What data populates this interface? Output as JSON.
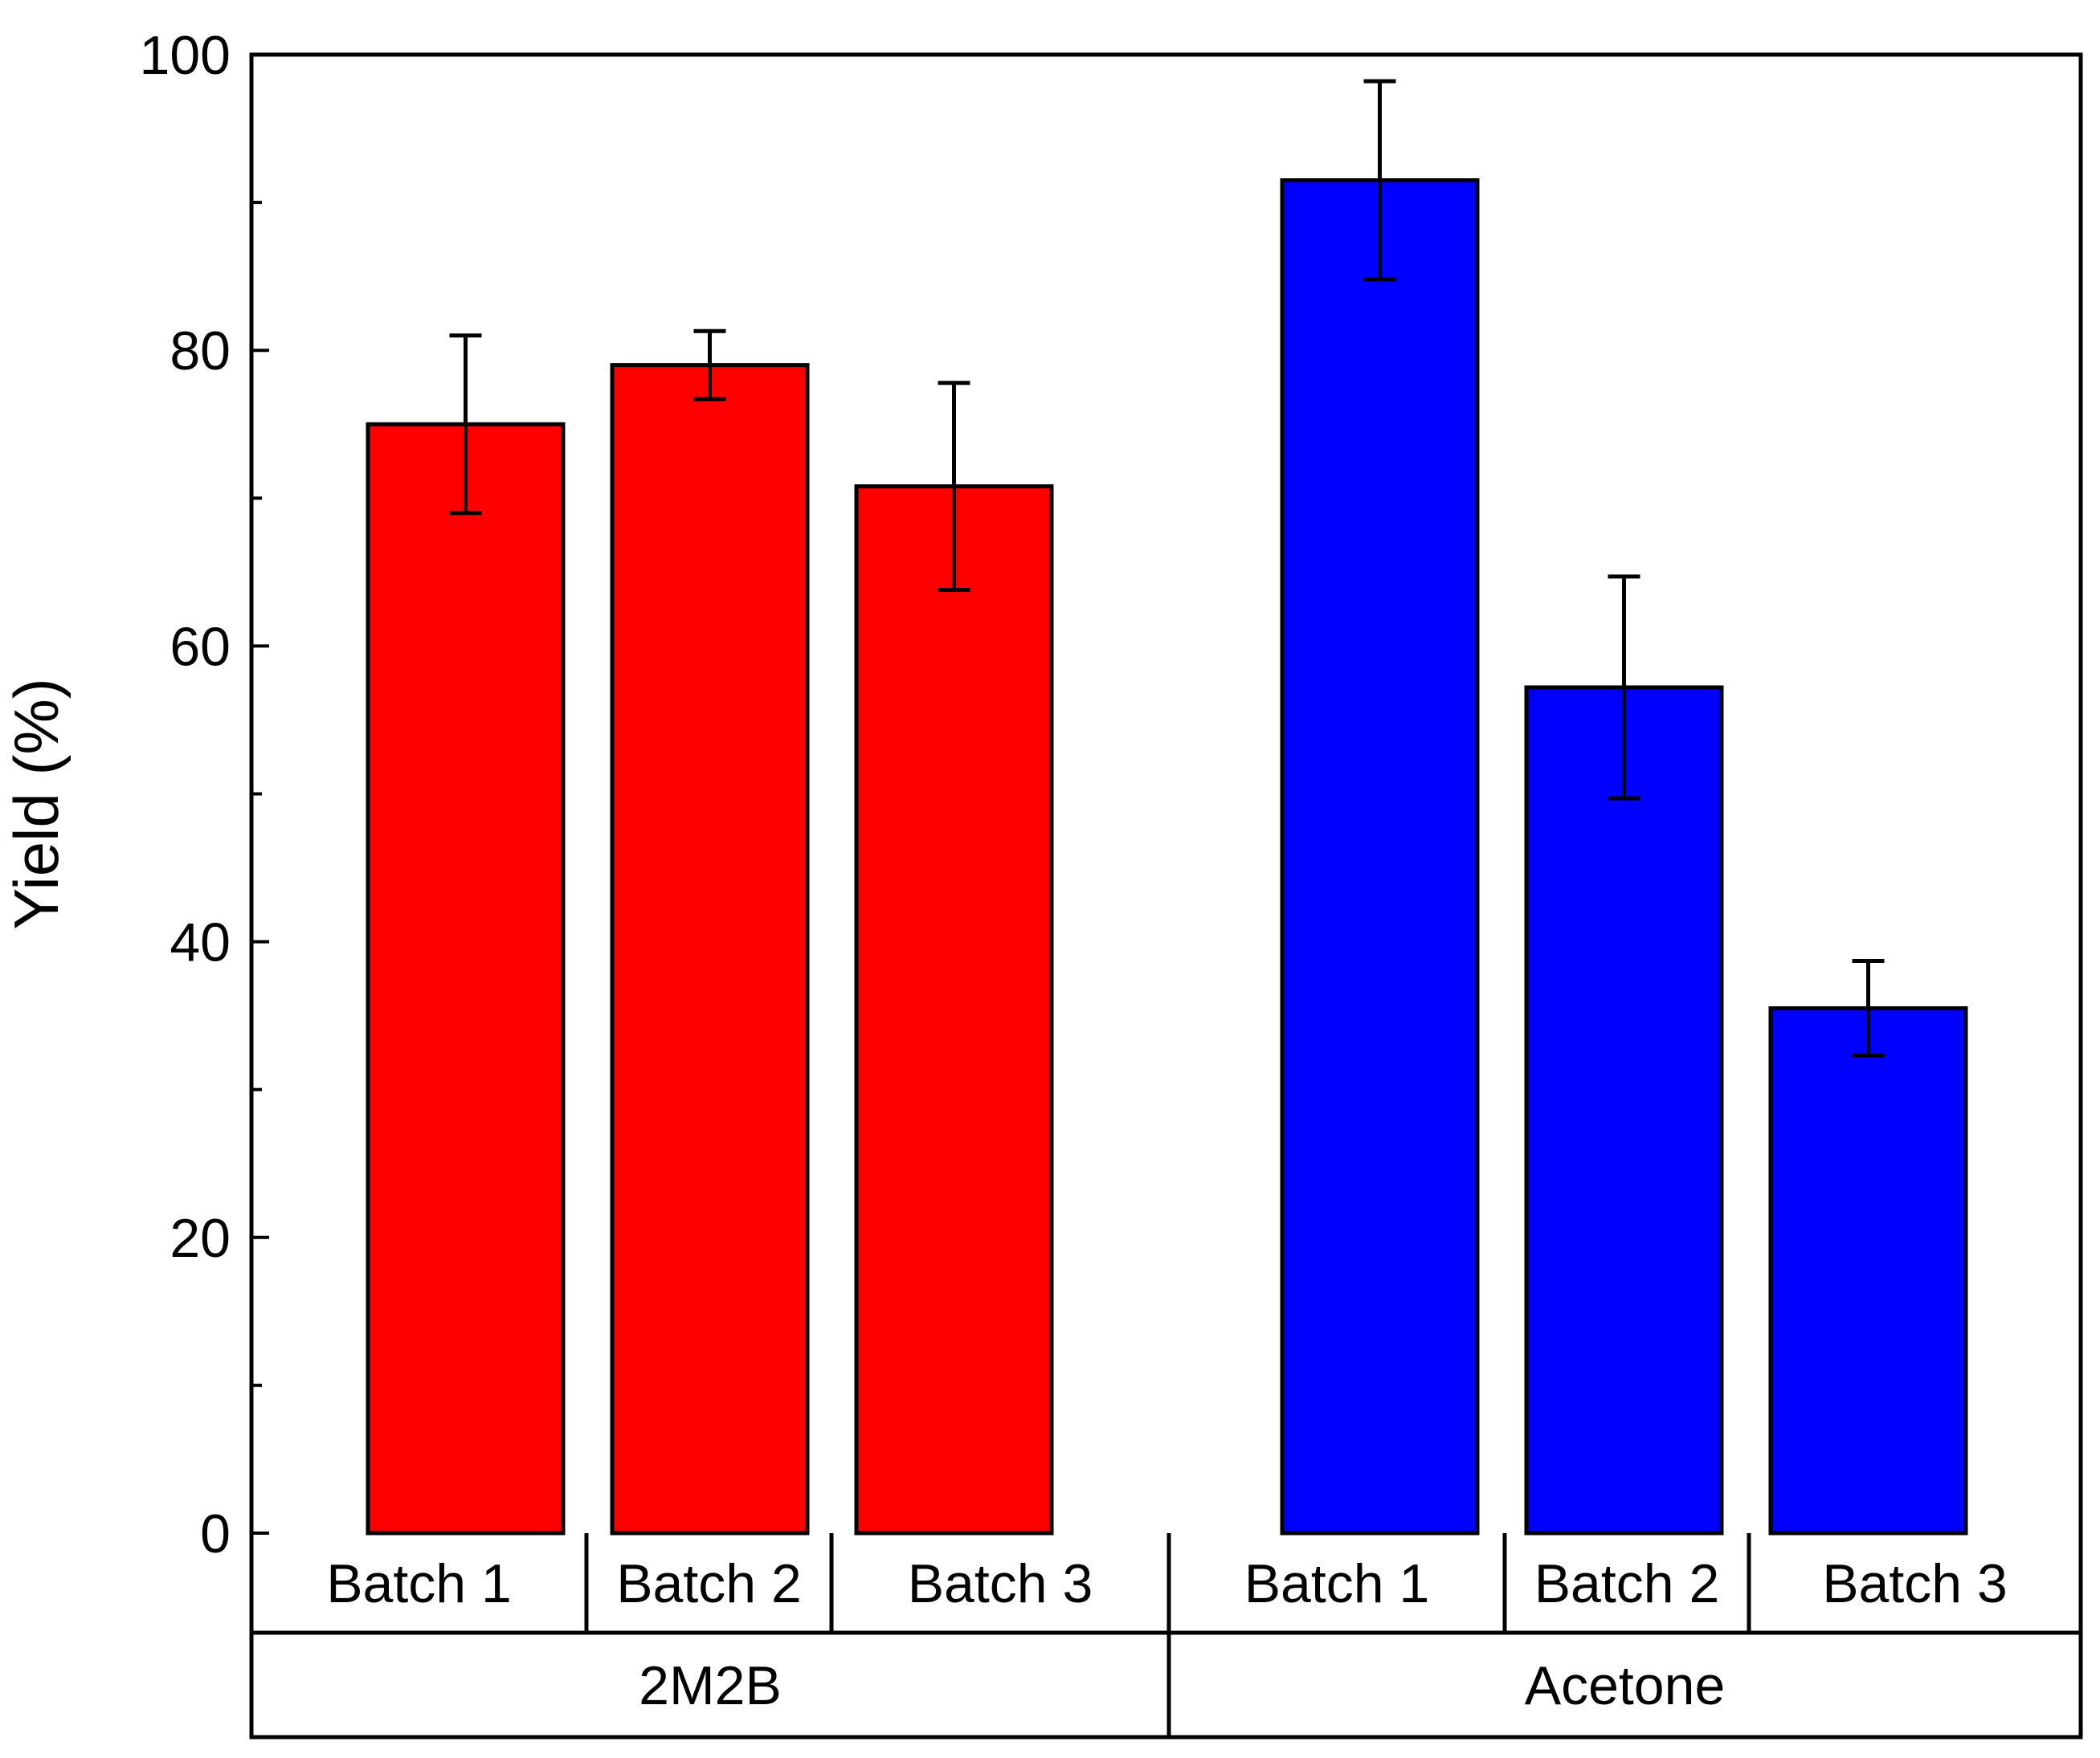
{
  "chart_data": {
    "type": "bar",
    "ylabel": "Yield (%)",
    "ylim": [
      0,
      100
    ],
    "yticks": [
      "0",
      "20",
      "40",
      "60",
      "80",
      "100"
    ],
    "groups": [
      {
        "name": "2M2B",
        "color": "#ff0000",
        "bars": [
          {
            "label": "Batch 1",
            "value": 75.0,
            "error": 6.0
          },
          {
            "label": "Batch 2",
            "value": 79.0,
            "error": 2.3
          },
          {
            "label": "Batch 3",
            "value": 70.8,
            "error": 7.0
          }
        ]
      },
      {
        "name": "Acetone",
        "color": "#0000ff",
        "bars": [
          {
            "label": "Batch 1",
            "value": 91.5,
            "error": 6.7
          },
          {
            "label": "Batch 2",
            "value": 57.2,
            "error": 7.5
          },
          {
            "label": "Batch 3",
            "value": 35.5,
            "error": 3.2
          }
        ]
      }
    ]
  }
}
